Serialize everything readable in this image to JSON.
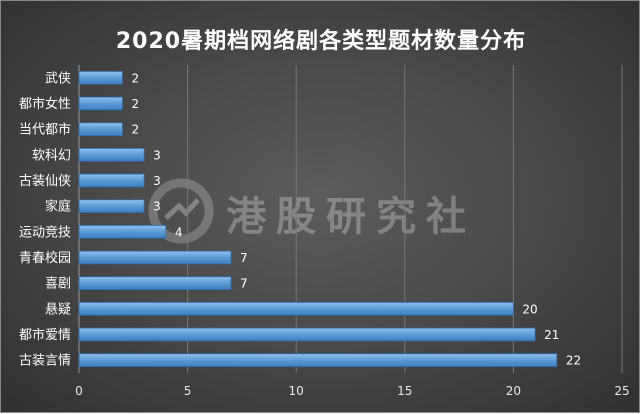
{
  "chart_data": {
    "type": "bar",
    "orientation": "horizontal",
    "title": "2020暑期档网络剧各类型题材数量分布",
    "categories": [
      "武侠",
      "都市女性",
      "当代都市",
      "软科幻",
      "古装仙侠",
      "家庭",
      "运动竞技",
      "青春校园",
      "喜剧",
      "悬疑",
      "都市爱情",
      "古装言情"
    ],
    "values": [
      2,
      2,
      2,
      3,
      3,
      3,
      4,
      7,
      7,
      20,
      21,
      22
    ],
    "xlim": [
      0,
      25
    ],
    "xticks": [
      0,
      5,
      10,
      15,
      20,
      25
    ],
    "grid": true,
    "legend": "none",
    "bar_color": "#5b9bd5"
  },
  "watermark": {
    "text": "港股研究社",
    "icon": "logo-circle-icon"
  }
}
